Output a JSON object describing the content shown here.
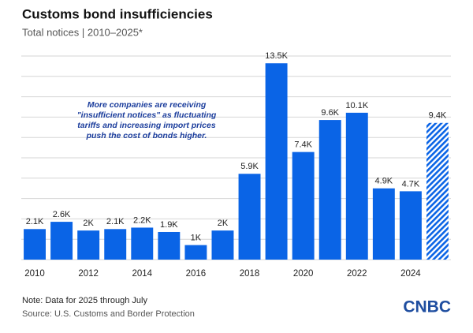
{
  "chart_data": {
    "type": "bar",
    "title": "Customs bond insufficiencies",
    "subtitle": "Total notices | 2010–2025*",
    "annotation": [
      "More companies are receiving",
      "\"insufficient notices\" as fluctuating",
      "tariffs and increasing import prices",
      "push the cost of bonds higher."
    ],
    "categories": [
      "2010",
      null,
      "2012",
      null,
      "2014",
      null,
      "2016",
      null,
      "2018",
      null,
      "2020",
      null,
      "2022",
      null,
      "2024",
      null
    ],
    "values": [
      2100,
      2600,
      2000,
      2100,
      2200,
      1900,
      1000,
      2000,
      5900,
      13500,
      7400,
      9600,
      10100,
      4900,
      4700,
      9400
    ],
    "value_labels": [
      "2.1K",
      "2.6K",
      "2K",
      "2.1K",
      "2.2K",
      "1.9K",
      "1K",
      "2K",
      "5.9K",
      "13.5K",
      "7.4K",
      "9.6K",
      "10.1K",
      "4.9K",
      "4.7K",
      "9.4K"
    ],
    "color": "#0a64e6",
    "hatch_last": true,
    "ylim": [
      0,
      14000
    ],
    "yticks": [
      0,
      1400,
      2800,
      4200,
      5600,
      7000,
      8400,
      9800,
      11200,
      12600,
      14000
    ],
    "grid": true,
    "note": "Note: Data for 2025 through July",
    "source": "Source: U.S. Customs and Border Protection",
    "logo": "CNBC"
  }
}
